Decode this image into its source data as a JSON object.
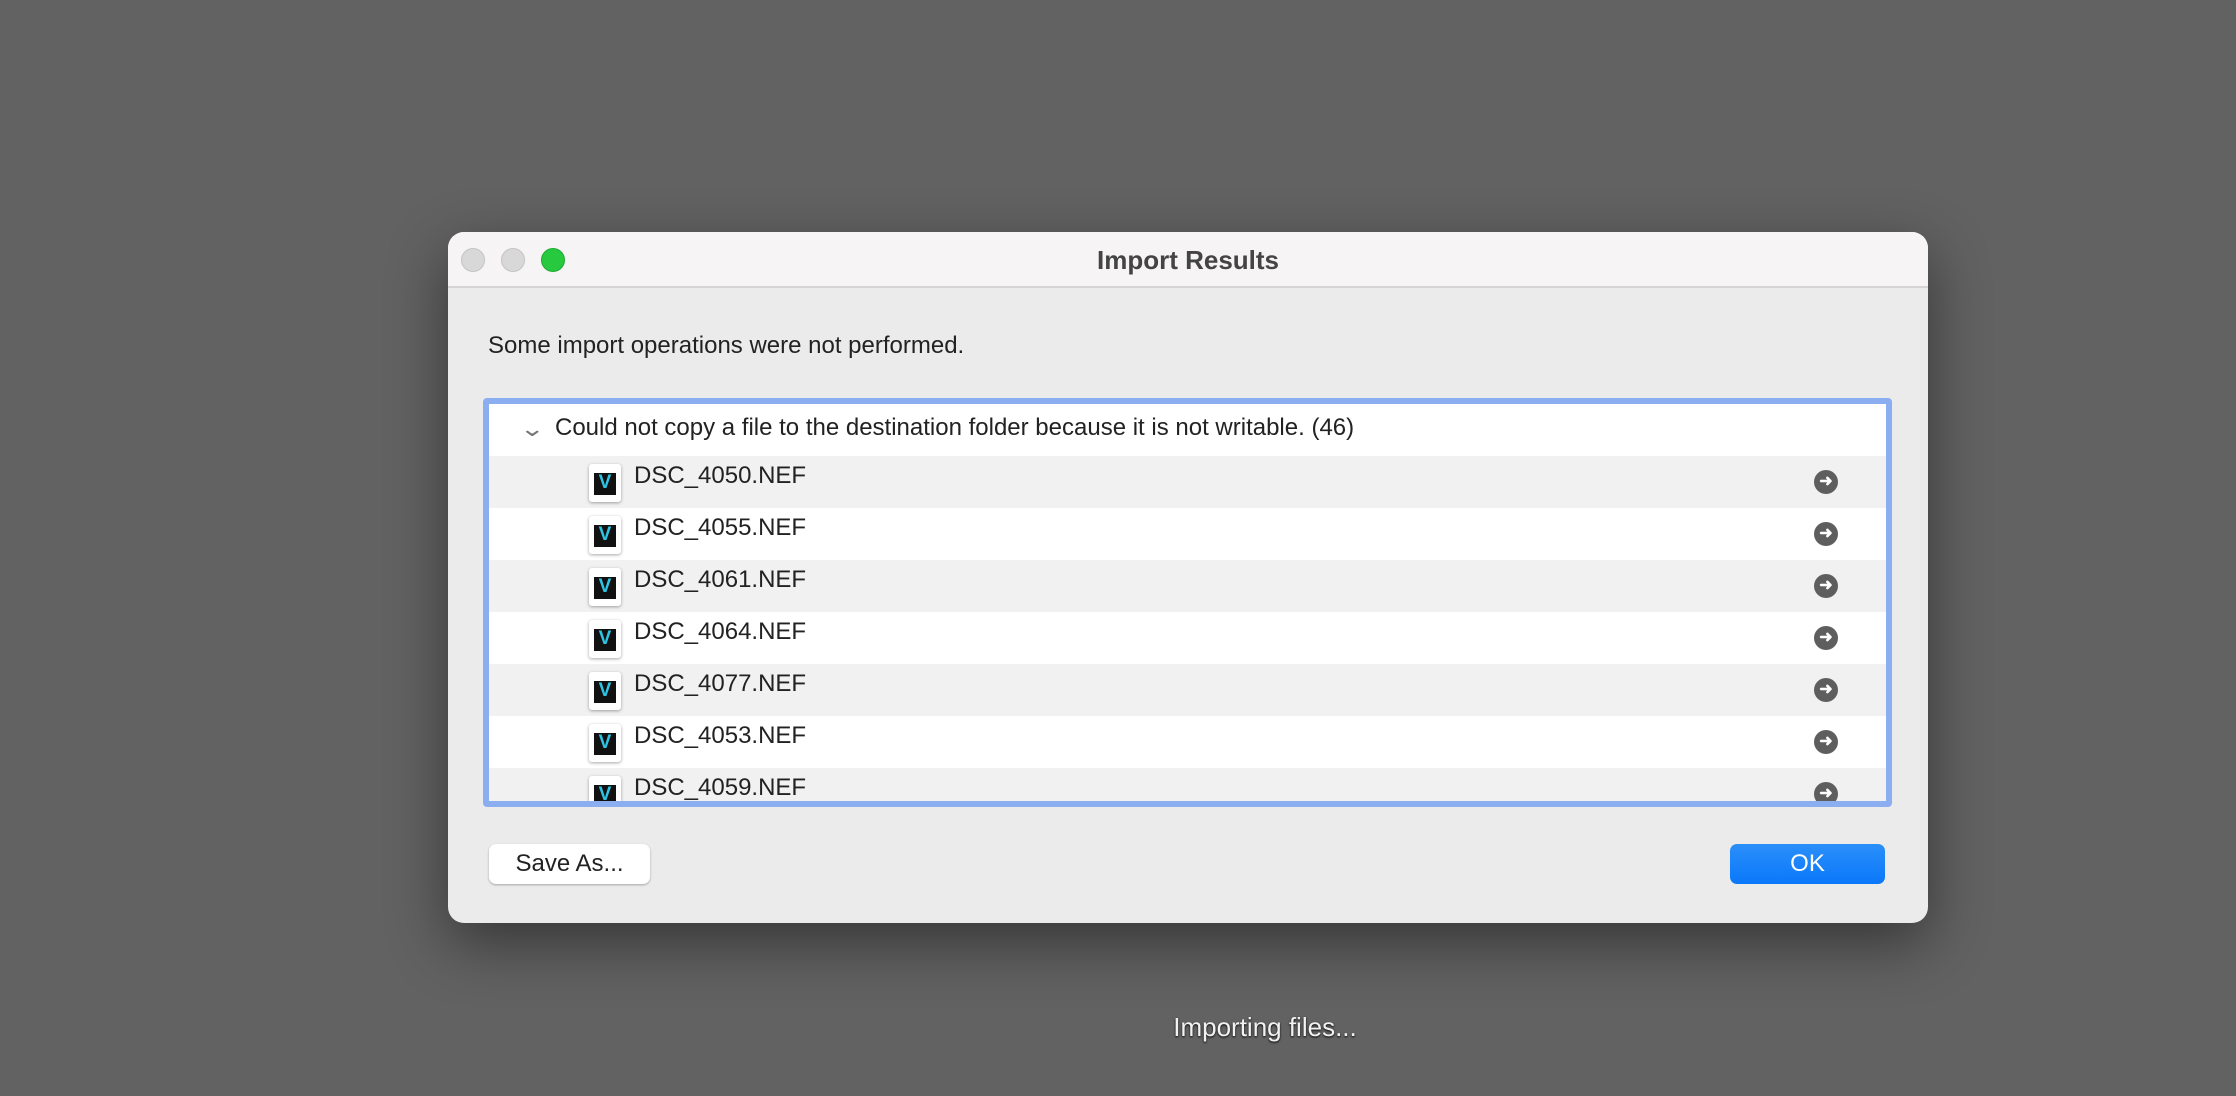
{
  "window": {
    "title": "Import Results"
  },
  "message": "Some import operations were not performed.",
  "group": {
    "label": "Could not copy a file to the destination folder because it is not writable. (46)",
    "expanded": true
  },
  "files": [
    "DSC_4050.NEF",
    "DSC_4055.NEF",
    "DSC_4061.NEF",
    "DSC_4064.NEF",
    "DSC_4077.NEF",
    "DSC_4053.NEF",
    "DSC_4059.NEF"
  ],
  "buttons": {
    "save_as": "Save As...",
    "ok": "OK"
  },
  "status": "Importing files...",
  "colors": {
    "accent": "#0a78fa",
    "focus_ring": "#8aaef0",
    "zoom_light": "#27c93f"
  }
}
